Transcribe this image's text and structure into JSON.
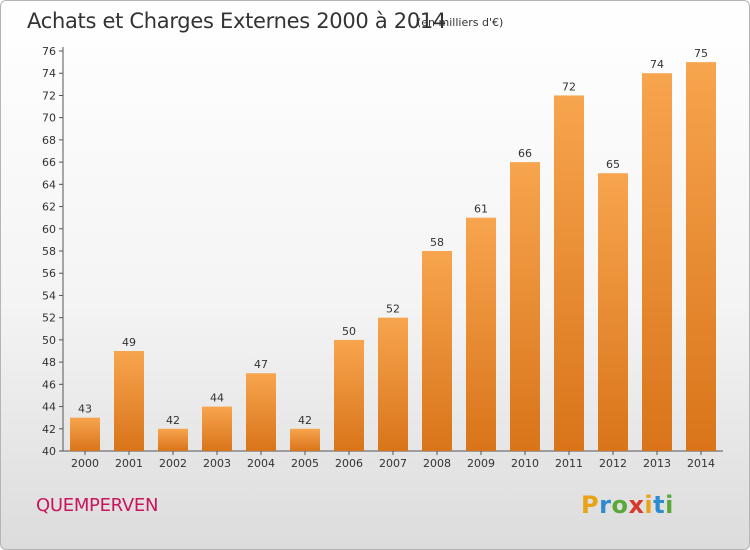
{
  "chart_data": {
    "type": "bar",
    "title": "Achats et Charges Externes 2000 à 2014",
    "subtitle": "(en milliers d'€)",
    "categories": [
      "2000",
      "2001",
      "2002",
      "2003",
      "2004",
      "2005",
      "2006",
      "2007",
      "2008",
      "2009",
      "2010",
      "2011",
      "2012",
      "2013",
      "2014"
    ],
    "values": [
      43,
      49,
      42,
      44,
      47,
      42,
      50,
      52,
      58,
      61,
      66,
      72,
      65,
      74,
      75
    ],
    "ylim": [
      40,
      76
    ],
    "ytick_step": 2,
    "grid": false,
    "bar_color_top": "#f7a54e",
    "bar_color_bottom": "#d9741a"
  },
  "commune_name": "QUEMPERVEN",
  "brand": {
    "letters": [
      "P",
      "r",
      "o",
      "x",
      "i",
      "t",
      "i"
    ],
    "colors": [
      "#e8a317",
      "#2e8bcf",
      "#5aa83a",
      "#d63a2b",
      "#e8a317",
      "#2e8bcf",
      "#5aa83a"
    ]
  }
}
